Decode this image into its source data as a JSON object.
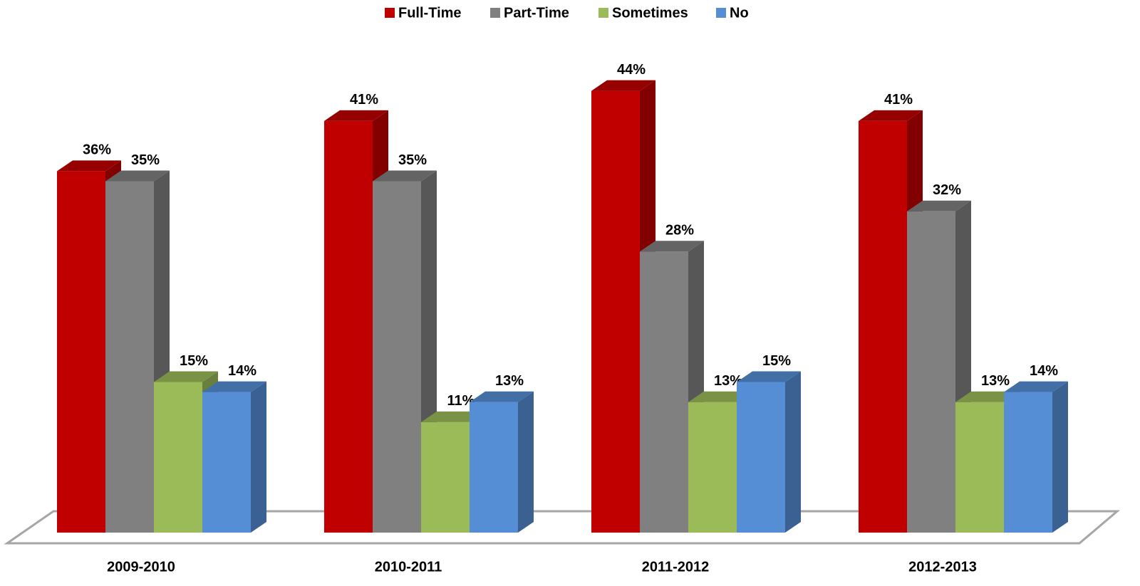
{
  "chart_data": {
    "type": "bar3d",
    "categories": [
      "2009-2010",
      "2010-2011",
      "2011-2012",
      "2012-2013"
    ],
    "series": [
      {
        "name": "Full-Time",
        "color": "#c00000",
        "values": [
          36,
          41,
          44,
          41
        ],
        "value_labels": [
          "36%",
          "41%",
          "44%",
          "41%"
        ]
      },
      {
        "name": "Part-Time",
        "color": "#808080",
        "values": [
          35,
          35,
          28,
          32
        ],
        "value_labels": [
          "35%",
          "35%",
          "28%",
          "32%"
        ]
      },
      {
        "name": "Sometimes",
        "color": "#9bbb59",
        "values": [
          15,
          11,
          13,
          13
        ],
        "value_labels": [
          "15%",
          "11%",
          "13%",
          "13%"
        ]
      },
      {
        "name": "No",
        "color": "#558ed5",
        "values": [
          14,
          13,
          15,
          14
        ],
        "value_labels": [
          "14%",
          "13%",
          "15%",
          "14%"
        ]
      }
    ],
    "ylim": [
      0,
      50
    ],
    "legend": "top"
  }
}
